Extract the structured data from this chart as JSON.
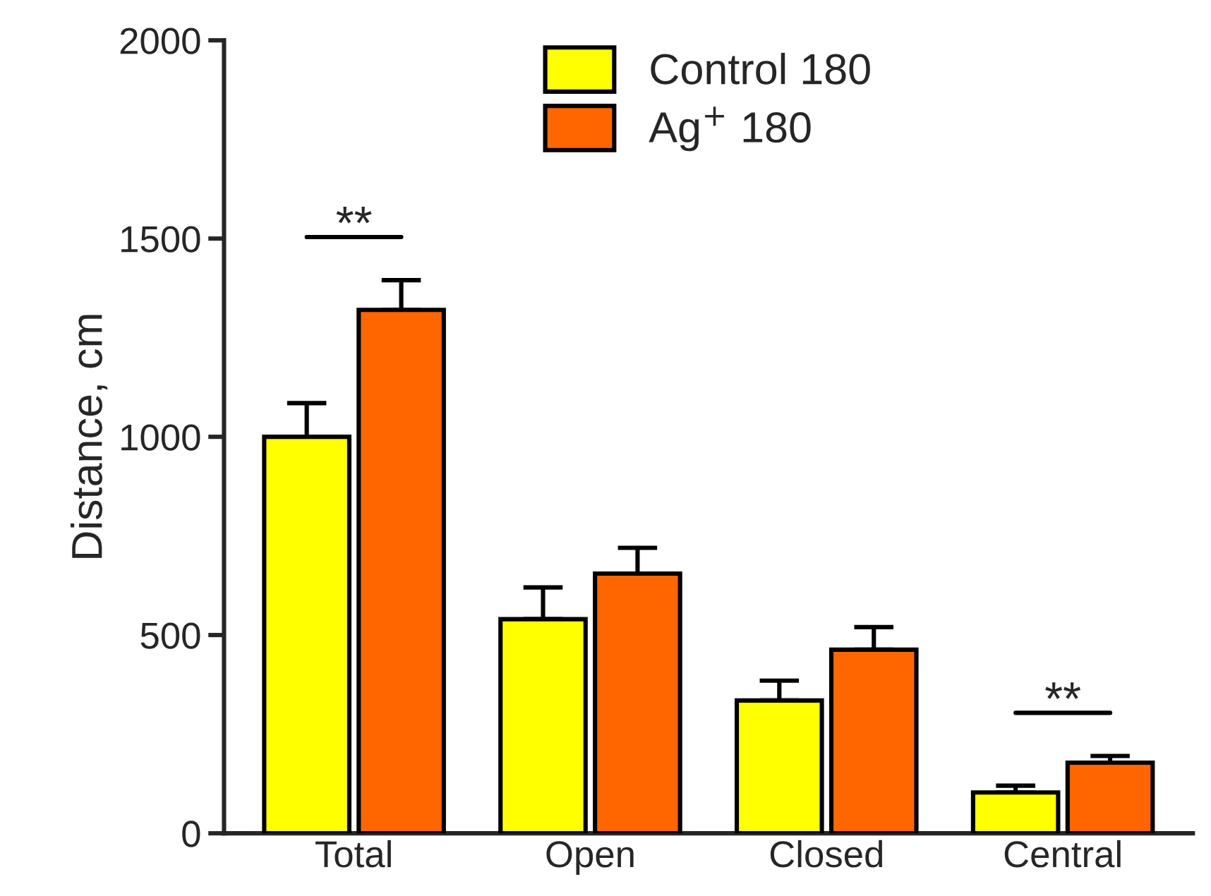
{
  "chart_data": {
    "type": "bar",
    "ylabel": "Distance, cm",
    "categories": [
      "Total",
      "Open",
      "Closed",
      "Central"
    ],
    "series": [
      {
        "name": "Control 180",
        "color": "#ffff00",
        "values": [
          1000,
          540,
          335,
          103
        ],
        "errors": [
          [
            1000,
            1085
          ],
          [
            540,
            620
          ],
          [
            335,
            385
          ],
          [
            103,
            120
          ]
        ]
      },
      {
        "name": "Ag$^{+}$ 180",
        "color": "#ff6600",
        "values": [
          1320,
          655,
          463,
          178
        ],
        "errors": [
          [
            1320,
            1395
          ],
          [
            655,
            720
          ],
          [
            463,
            520
          ],
          [
            178,
            195
          ]
        ]
      }
    ],
    "ylim": [
      0,
      2000
    ],
    "yticks": [
      0,
      500,
      1000,
      1500,
      2000
    ],
    "grid": false,
    "legend": "top",
    "annotations": [
      "**",
      "**"
    ]
  }
}
